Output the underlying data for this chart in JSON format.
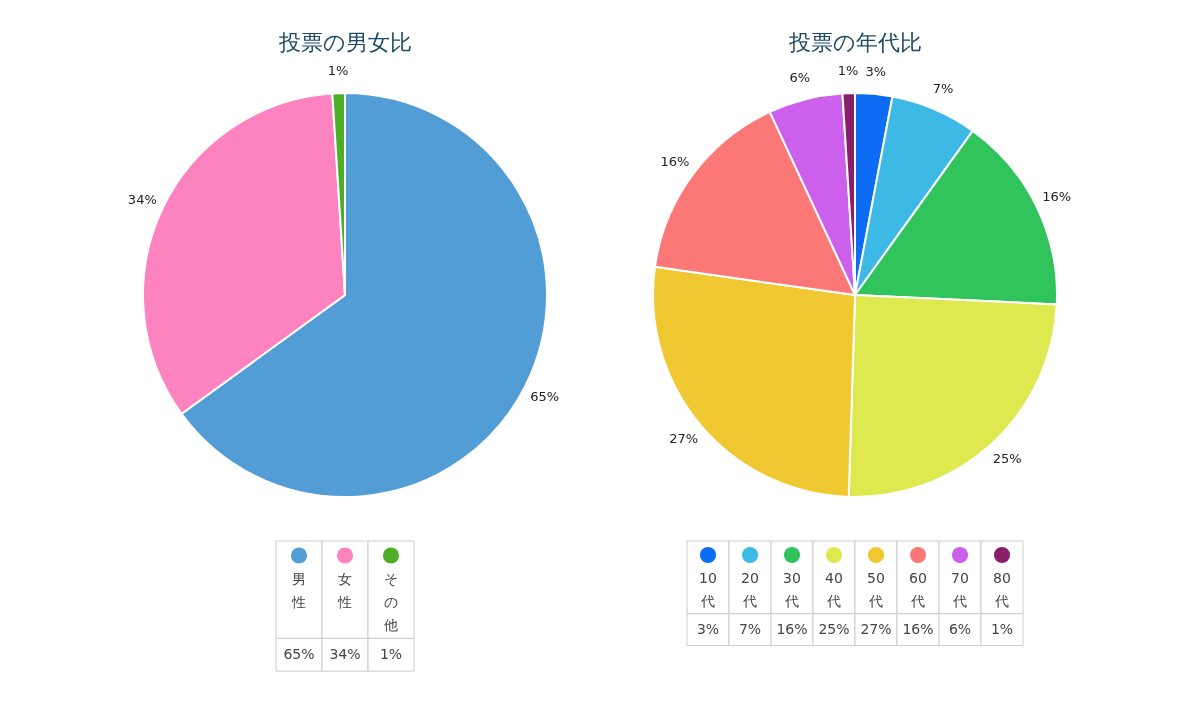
{
  "chart_data": [
    {
      "type": "pie",
      "title": "投票の男女比",
      "categories": [
        "男性",
        "女性",
        "その他"
      ],
      "values": [
        65,
        34,
        1
      ],
      "value_labels": [
        "65%",
        "34%",
        "1%"
      ],
      "colors": [
        "#529dd5",
        "#fc83bf",
        "#4caf26"
      ],
      "legend": "bottom"
    },
    {
      "type": "pie",
      "title": "投票の年代比",
      "categories": [
        "10代",
        "20代",
        "30代",
        "40代",
        "50代",
        "60代",
        "70代",
        "80代"
      ],
      "values": [
        3,
        7,
        16,
        25,
        27,
        16,
        6,
        1
      ],
      "value_labels": [
        "3%",
        "7%",
        "16%",
        "25%",
        "27%",
        "16%",
        "6%",
        "1%"
      ],
      "colors": [
        "#0d6cf5",
        "#3db9e6",
        "#31c45c",
        "#dde94f",
        "#f0c832",
        "#fc7877",
        "#cc5fec",
        "#8b1e6b"
      ],
      "legend": "bottom"
    }
  ]
}
